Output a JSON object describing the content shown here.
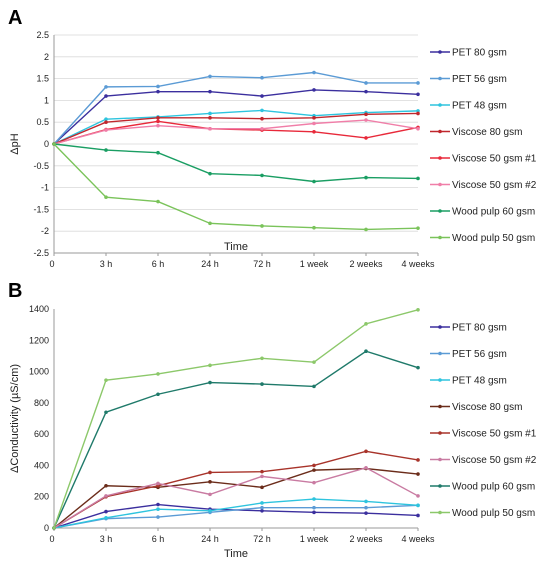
{
  "chart_data": [
    {
      "type": "line",
      "panel_label": "A",
      "xlabel": "Time",
      "ylabel": "ΔpH",
      "categories": [
        "0",
        "3 h",
        "6 h",
        "24 h",
        "72 h",
        "1 week",
        "2 weeks",
        "4 weeks"
      ],
      "ylim": [
        -2.5,
        2.5
      ],
      "yticks": [
        "2.5",
        "2",
        "1.5",
        "1",
        "0.5",
        "0",
        "-0.5",
        "-1",
        "-1.5",
        "-2",
        "-2.5"
      ],
      "grid": true,
      "legend_position": "right",
      "series": [
        {
          "name": "PET 80 gsm",
          "color": "#3b2f9e",
          "values": [
            0,
            1.1,
            1.2,
            1.2,
            1.1,
            1.24,
            1.2,
            1.14
          ]
        },
        {
          "name": "PET 56 gsm",
          "color": "#5b9bd5",
          "values": [
            0,
            1.31,
            1.32,
            1.55,
            1.52,
            1.64,
            1.4,
            1.4
          ]
        },
        {
          "name": "PET 48 gsm",
          "color": "#2ec4de",
          "values": [
            0,
            0.57,
            0.62,
            0.7,
            0.77,
            0.65,
            0.72,
            0.76
          ]
        },
        {
          "name": "Viscose 80 gsm",
          "color": "#c0272d",
          "values": [
            0,
            0.5,
            0.6,
            0.6,
            0.58,
            0.6,
            0.68,
            0.7
          ]
        },
        {
          "name": "Viscose 50 gsm #1",
          "color": "#e8293a",
          "values": [
            0,
            0.33,
            0.52,
            0.35,
            0.32,
            0.28,
            0.14,
            0.38
          ]
        },
        {
          "name": "Viscose 50 gsm #2",
          "color": "#f07ea8",
          "values": [
            0,
            0.32,
            0.42,
            0.35,
            0.35,
            0.47,
            0.55,
            0.35
          ]
        },
        {
          "name": "Wood pulp 60 gsm",
          "color": "#1a9e63",
          "values": [
            0,
            -0.14,
            -0.2,
            -0.68,
            -0.72,
            -0.86,
            -0.77,
            -0.79
          ]
        },
        {
          "name": "Wood pulp 50 gsm",
          "color": "#7ac35a",
          "values": [
            0,
            -1.22,
            -1.32,
            -1.82,
            -1.88,
            -1.92,
            -1.96,
            -1.93
          ]
        }
      ]
    },
    {
      "type": "line",
      "panel_label": "B",
      "xlabel": "Time",
      "ylabel": "ΔConductivity (µS/cm)",
      "categories": [
        "0",
        "3 h",
        "6 h",
        "24 h",
        "72 h",
        "1 week",
        "2 weeks",
        "4 weeks"
      ],
      "ylim": [
        0,
        1400
      ],
      "yticks": [
        "1400",
        "1200",
        "1000",
        "800",
        "600",
        "400",
        "200",
        "0"
      ],
      "grid": false,
      "legend_position": "right",
      "series": [
        {
          "name": "PET 80 gsm",
          "color": "#3b2f9e",
          "values": [
            0,
            105,
            150,
            120,
            110,
            100,
            95,
            80
          ]
        },
        {
          "name": "PET 56 gsm",
          "color": "#5b9bd5",
          "values": [
            0,
            60,
            70,
            100,
            130,
            130,
            130,
            145
          ]
        },
        {
          "name": "PET 48 gsm",
          "color": "#2ec4de",
          "values": [
            0,
            65,
            120,
            110,
            160,
            185,
            170,
            145
          ]
        },
        {
          "name": "Viscose 80 gsm",
          "color": "#6b2c1a",
          "values": [
            0,
            270,
            260,
            295,
            260,
            370,
            380,
            345
          ]
        },
        {
          "name": "Viscose 50 gsm #1",
          "color": "#a8332a",
          "values": [
            0,
            200,
            270,
            355,
            360,
            400,
            490,
            435
          ]
        },
        {
          "name": "Viscose 50 gsm #2",
          "color": "#c97ba2",
          "values": [
            0,
            205,
            285,
            215,
            330,
            290,
            385,
            205
          ]
        },
        {
          "name": "Wood pulp 60 gsm",
          "color": "#1f7a6a",
          "values": [
            0,
            740,
            855,
            930,
            920,
            905,
            1130,
            1025
          ]
        },
        {
          "name": "Wood pulp 50 gsm",
          "color": "#8cc86a",
          "values": [
            0,
            945,
            985,
            1040,
            1085,
            1060,
            1305,
            1395
          ]
        }
      ]
    }
  ]
}
